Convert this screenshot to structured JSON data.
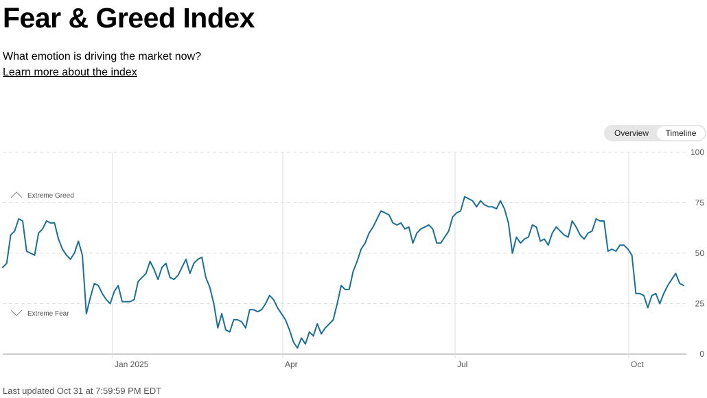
{
  "page": {
    "title": "Fear & Greed Index",
    "subtitle": "What emotion is driving the market now?",
    "learn_more": "Learn more about the index",
    "last_updated": "Last updated Oct 31 at 7:59:59 PM EDT"
  },
  "view_toggle": {
    "options": [
      "Overview",
      "Timeline"
    ],
    "selected": "Timeline"
  },
  "colors": {
    "line": "#1a6f96",
    "grid": "#dedede",
    "axis": "#bbbbbb",
    "text": "#555555"
  },
  "chart_data": {
    "type": "line",
    "x_ticks": [
      "Jan 2025",
      "Apr",
      "Jul",
      "Oct"
    ],
    "y_ticks": [
      0,
      25,
      50,
      75,
      100
    ],
    "ylim": [
      0,
      100
    ],
    "grid": true,
    "zone_labels": [
      {
        "text": "Extreme Greed",
        "icon": "chevron-up-icon"
      },
      {
        "text": "Extreme Fear",
        "icon": "chevron-down-icon"
      }
    ],
    "series": [
      {
        "values": [
          43,
          45,
          59,
          61,
          67,
          66,
          51,
          50,
          49,
          60,
          62,
          66,
          65,
          65,
          57,
          52,
          49,
          47,
          50,
          56,
          49,
          20,
          28,
          35,
          34,
          30,
          27,
          25,
          31,
          34,
          26,
          26,
          26,
          27,
          36,
          38,
          40,
          46,
          42,
          37,
          43,
          45,
          38,
          37,
          39,
          43,
          47,
          40,
          45,
          47,
          48,
          38,
          33,
          25,
          13,
          20,
          12,
          11,
          17,
          17,
          16,
          13,
          22,
          22,
          21,
          22,
          25,
          29,
          27,
          23,
          20,
          17,
          12,
          6,
          3,
          8,
          5,
          11,
          9,
          15,
          10,
          13,
          15,
          17,
          25,
          34,
          32,
          32,
          41,
          46,
          52,
          55,
          60,
          63,
          67,
          71,
          70,
          69,
          65,
          64,
          65,
          62,
          63,
          55,
          60,
          62,
          63,
          64,
          62,
          55,
          55,
          58,
          61,
          68,
          70,
          71,
          78,
          77,
          76,
          73,
          76,
          74,
          73,
          73,
          72,
          76,
          72,
          65,
          50,
          58,
          55,
          57,
          58,
          64,
          63,
          56,
          57,
          54,
          60,
          63,
          61,
          59,
          58,
          66,
          63,
          59,
          57,
          60,
          61,
          67,
          66,
          66,
          51,
          52,
          51,
          54,
          54,
          52,
          49,
          30,
          30,
          29,
          23,
          29,
          30,
          25,
          30,
          34,
          37,
          40,
          35,
          34
        ]
      }
    ]
  }
}
